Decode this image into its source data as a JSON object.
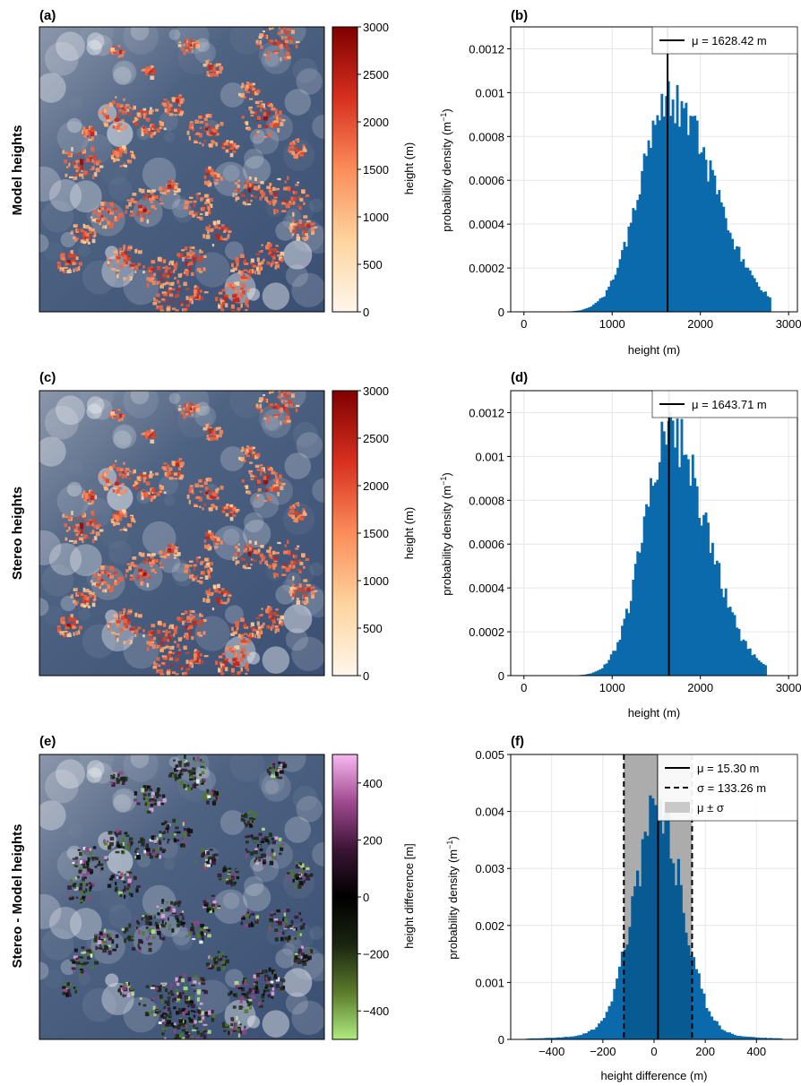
{
  "rows": [
    {
      "ylabel": "Model heights"
    },
    {
      "ylabel": "Stereo heights"
    },
    {
      "ylabel": "Stereo - Model heights"
    }
  ],
  "colormaps": {
    "heights": {
      "stops": [
        "#fff7ec",
        "#fdd49e",
        "#fc8d59",
        "#d7301f",
        "#7f0000"
      ]
    },
    "diff": {
      "stops": [
        "#aeeb7f",
        "#5a7a2a",
        "#1a2410",
        "#000000",
        "#3b1535",
        "#a04a8f",
        "#f7b8f0"
      ]
    }
  },
  "chart_data": [
    {
      "panel": "(a)",
      "type": "heatmap",
      "colorbar": {
        "label": "height (m)",
        "ticks": [
          "0",
          "500",
          "1000",
          "1500",
          "2000",
          "2500",
          "3000"
        ],
        "range": [
          0,
          3000
        ]
      }
    },
    {
      "panel": "(b)",
      "type": "bar",
      "xlabel": "height (m)",
      "ylabel": "probability density (m",
      "xlim": [
        -150,
        3100
      ],
      "ylim": [
        0,
        0.0013
      ],
      "xticks": [
        0,
        1000,
        2000,
        3000
      ],
      "xtick_labels": [
        "0",
        "1000",
        "2000",
        "3000"
      ],
      "yticks": [
        0,
        0.0002,
        0.0004,
        0.0006,
        0.0008,
        0.001,
        0.0012
      ],
      "ytick_labels": [
        "0",
        "0.0002",
        "0.0004",
        "0.0006",
        "0.0008",
        "0.001",
        "0.0012"
      ],
      "grid": true,
      "legend_position": "top-right",
      "color": "#0a6aab",
      "hist": {
        "center": 1628.42,
        "sigma": 370,
        "skew": 0.35,
        "min": 0,
        "max": 2800,
        "bin": 25
      },
      "mean_line": {
        "value": 1628.42,
        "label": "μ = 1628.42 m"
      }
    },
    {
      "panel": "(c)",
      "type": "heatmap",
      "colorbar": {
        "label": "height (m)",
        "ticks": [
          "0",
          "500",
          "1000",
          "1500",
          "2000",
          "2500",
          "3000"
        ],
        "range": [
          0,
          3000
        ]
      }
    },
    {
      "panel": "(d)",
      "type": "bar",
      "xlabel": "height (m)",
      "ylabel": "probability density (m",
      "xlim": [
        -150,
        3100
      ],
      "ylim": [
        0,
        0.0013
      ],
      "xticks": [
        0,
        1000,
        2000,
        3000
      ],
      "xtick_labels": [
        "0",
        "1000",
        "2000",
        "3000"
      ],
      "yticks": [
        0,
        0.0002,
        0.0004,
        0.0006,
        0.0008,
        0.001,
        0.0012
      ],
      "ytick_labels": [
        "0",
        "0.0002",
        "0.0004",
        "0.0006",
        "0.0008",
        "0.001",
        "0.0012"
      ],
      "grid": true,
      "legend_position": "top-right",
      "color": "#0a6aab",
      "hist": {
        "center": 1643.71,
        "sigma": 330,
        "skew": 0.3,
        "min": 0,
        "max": 2750,
        "bin": 25
      },
      "mean_line": {
        "value": 1643.71,
        "label": "μ = 1643.71 m"
      }
    },
    {
      "panel": "(e)",
      "type": "heatmap",
      "colorbar": {
        "label": "height difference [m]",
        "ticks": [
          "−400",
          "−200",
          "0",
          "200",
          "400"
        ],
        "range": [
          -500,
          500
        ]
      }
    },
    {
      "panel": "(f)",
      "type": "bar",
      "xlabel": "height difference (m)",
      "ylabel": "probability density (m",
      "xlim": [
        -560,
        560
      ],
      "ylim": [
        0,
        0.005
      ],
      "xticks": [
        -400,
        -200,
        0,
        200,
        400
      ],
      "xtick_labels": [
        "−400",
        "−200",
        "0",
        "200",
        "400"
      ],
      "yticks": [
        0,
        0.001,
        0.002,
        0.003,
        0.004,
        0.005
      ],
      "ytick_labels": [
        "0",
        "0.001",
        "0.002",
        "0.003",
        "0.004",
        "0.005"
      ],
      "grid": true,
      "legend_position": "top-right",
      "color": "#0a6aab",
      "hist": {
        "center": 15.3,
        "sigma": 95,
        "tail": 0.1,
        "min": -500,
        "max": 500,
        "bin": 10
      },
      "mean_line": {
        "value": 15.3,
        "label": "μ =  15.30 m"
      },
      "sigma_lines": {
        "values": [
          -117.96,
          148.56
        ],
        "label": "σ =  133.26 m"
      },
      "band": {
        "range": [
          -117.96,
          148.56
        ],
        "label": "μ ± σ",
        "color": "#c9c9c9"
      }
    }
  ]
}
